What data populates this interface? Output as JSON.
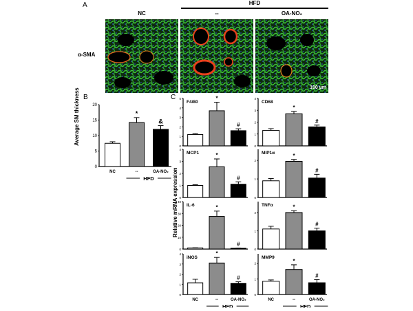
{
  "panel_a": {
    "label": "A",
    "group_header": "HFD",
    "columns": [
      "NC",
      "--",
      "OA-NO₂"
    ],
    "row_label": "α-SMA",
    "scale_bar": "100 µm"
  },
  "panel_b": {
    "label": "B"
  },
  "panel_c": {
    "label": "C",
    "ylabel": "Relative mRNA expression"
  },
  "colors": {
    "nc": "#ffffff",
    "hfd": "#8c8c8c",
    "oa": "#000000",
    "tissue": "#2fa82f",
    "nuclei": "#2a4fd0",
    "sma": "#e8401c"
  },
  "chart_data": [
    {
      "type": "bar",
      "panel": "B",
      "title": "",
      "categories": [
        "NC",
        "--",
        "OA-NO₂"
      ],
      "group_label": "HFD",
      "values": [
        7.5,
        14.2,
        12.0
      ],
      "errors": [
        0.5,
        1.6,
        1.2
      ],
      "annotations": [
        "",
        "*",
        "&"
      ],
      "ylabel": "Average SM thickness",
      "ylim": [
        0,
        20
      ],
      "yticks": [
        0,
        5,
        10,
        15,
        20
      ]
    },
    {
      "type": "bar",
      "panel": "C",
      "title": "F4/80",
      "categories": [
        "NC",
        "--",
        "OA-NO₂"
      ],
      "values": [
        1.2,
        3.7,
        1.6
      ],
      "errors": [
        0.08,
        0.9,
        0.2
      ],
      "annotations": [
        "",
        "*",
        "#"
      ],
      "ylim": [
        0,
        5
      ],
      "yticks": [
        0,
        1,
        2,
        3,
        4,
        5
      ]
    },
    {
      "type": "bar",
      "panel": "C",
      "title": "CD68",
      "categories": [
        "NC",
        "--",
        "OA-NO₂"
      ],
      "values": [
        1.3,
        2.7,
        1.6
      ],
      "errors": [
        0.15,
        0.2,
        0.15
      ],
      "annotations": [
        "",
        "*",
        "#"
      ],
      "ylim": [
        0,
        4
      ],
      "yticks": [
        0,
        1,
        2,
        3,
        4
      ]
    },
    {
      "type": "bar",
      "panel": "C",
      "title": "MCP1",
      "categories": [
        "NC",
        "--",
        "OA-NO₂"
      ],
      "values": [
        1.0,
        2.55,
        1.1
      ],
      "errors": [
        0.06,
        0.65,
        0.2
      ],
      "annotations": [
        "",
        "*",
        "#"
      ],
      "ylim": [
        0,
        4
      ],
      "yticks": [
        0,
        1,
        2,
        3,
        4
      ]
    },
    {
      "type": "bar",
      "panel": "C",
      "title": "MIP1α",
      "categories": [
        "NC",
        "--",
        "OA-NO₂"
      ],
      "values": [
        0.9,
        1.95,
        1.05
      ],
      "errors": [
        0.12,
        0.1,
        0.2
      ],
      "annotations": [
        "",
        "*",
        "#"
      ],
      "ylim": [
        0,
        2.6
      ],
      "yticks": [
        0,
        1,
        2
      ]
    },
    {
      "type": "bar",
      "panel": "C",
      "title": "IL-6",
      "categories": [
        "NC",
        "--",
        "OA-NO₂"
      ],
      "values": [
        1.0,
        27.5,
        0.8
      ],
      "errors": [
        0.1,
        4.5,
        0.1
      ],
      "annotations": [
        "",
        "*",
        "#"
      ],
      "ylim": [
        0,
        40
      ],
      "yticks": [
        0,
        10,
        20,
        30,
        40
      ]
    },
    {
      "type": "bar",
      "panel": "C",
      "title": "TNFα",
      "categories": [
        "NC",
        "--",
        "OA-NO₂"
      ],
      "values": [
        1.1,
        2.0,
        1.0
      ],
      "errors": [
        0.15,
        0.1,
        0.15
      ],
      "annotations": [
        "",
        "*",
        "#"
      ],
      "ylim": [
        0,
        2.6
      ],
      "yticks": [
        0,
        1,
        2
      ]
    },
    {
      "type": "bar",
      "panel": "C",
      "title": "iNOS",
      "categories": [
        "NC",
        "--",
        "OA-NO₂"
      ],
      "values": [
        1.15,
        3.1,
        1.1
      ],
      "errors": [
        0.35,
        0.55,
        0.15
      ],
      "annotations": [
        "",
        "*",
        "#"
      ],
      "ylim": [
        0,
        4
      ],
      "yticks": [
        0,
        1,
        2,
        3,
        4
      ]
    },
    {
      "type": "bar",
      "panel": "C",
      "title": "MMP9",
      "categories": [
        "NC",
        "--",
        "OA-NO₂"
      ],
      "values": [
        0.85,
        1.6,
        0.75
      ],
      "errors": [
        0.08,
        0.3,
        0.2
      ],
      "annotations": [
        "",
        "*",
        "#"
      ],
      "ylim": [
        0,
        2.6
      ],
      "yticks": [
        0,
        1,
        2
      ]
    }
  ],
  "x_axis": {
    "categories": [
      "NC",
      "--",
      "OA-NO₂"
    ],
    "group_label": "HFD"
  }
}
